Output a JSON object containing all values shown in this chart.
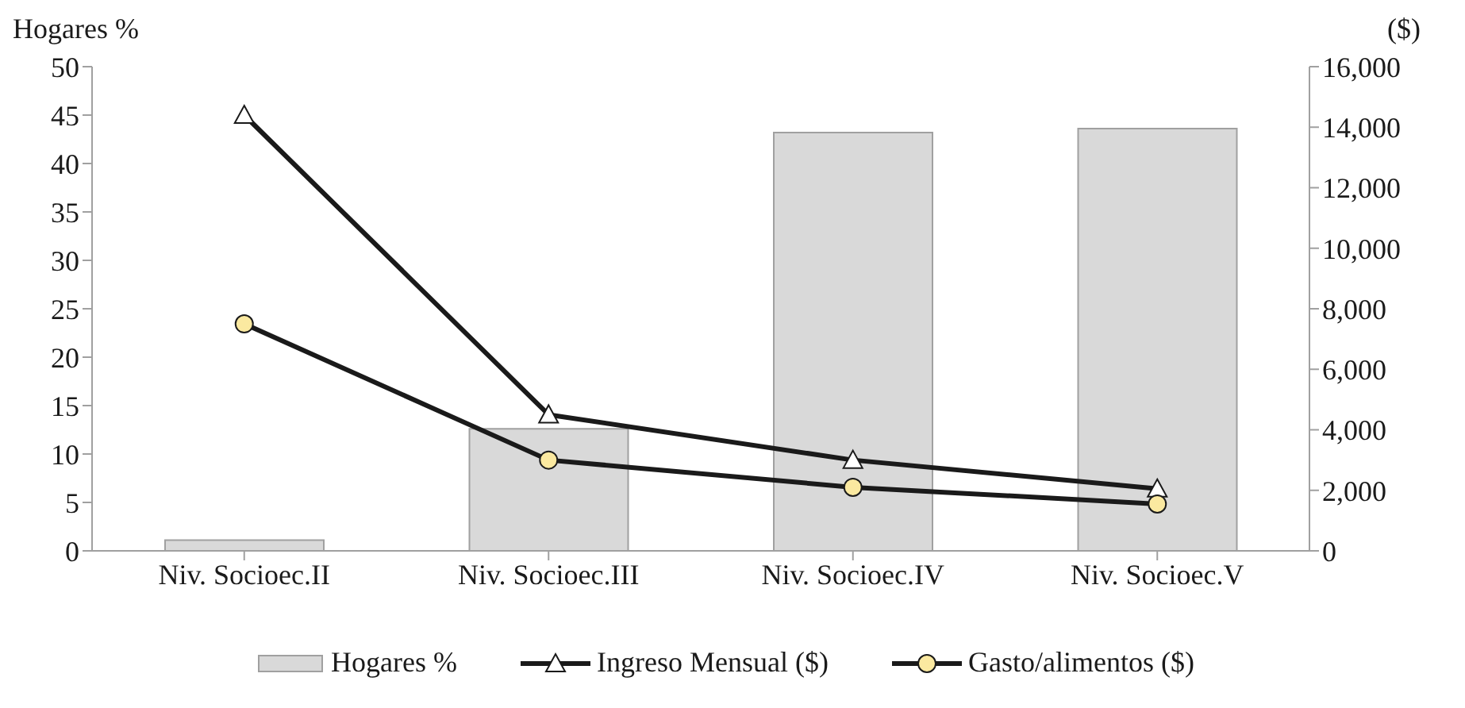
{
  "chart_data": {
    "type": "bar",
    "ylabel": "Hogares %",
    "y2label": "($)",
    "categories": [
      "Niv. Socioec.II",
      "Niv. Socioec.III",
      "Niv. Socioec.IV",
      "Niv. Socioec.V"
    ],
    "series": [
      {
        "name": "Hogares %",
        "color": "#d9d9d9",
        "values": [
          1.1,
          12.6,
          43.2,
          43.6
        ]
      },
      {
        "name": "Ingreso Mensual ($)",
        "type": "line",
        "axis": "y2",
        "color": "#1a1a1a",
        "marker": "triangle",
        "values": [
          14400,
          4500,
          3000,
          2050
        ]
      },
      {
        "name": "Gasto/alimentos ($)",
        "type": "line",
        "axis": "y2",
        "color": "#1a1a1a",
        "marker": "circle",
        "values": [
          7500,
          3000,
          2100,
          1550
        ]
      }
    ],
    "ylim": [
      0,
      50
    ],
    "yticks": [
      0,
      5,
      10,
      15,
      20,
      25,
      30,
      35,
      40,
      45,
      50
    ],
    "y2lim": [
      0,
      16000
    ],
    "y2ticks": [
      0,
      {
        "value": 2000,
        "label": "2,000"
      },
      {
        "value": 4000,
        "label": "4,000"
      },
      {
        "value": 6000,
        "label": "6,000"
      },
      {
        "value": 8000,
        "label": "8,000"
      },
      {
        "value": 10000,
        "label": "10,000"
      },
      {
        "value": 12000,
        "label": "12,000"
      },
      {
        "value": 14000,
        "label": "14,000"
      },
      {
        "value": 16000,
        "label": "16,000"
      }
    ],
    "grid": false,
    "legend": "bottom"
  }
}
